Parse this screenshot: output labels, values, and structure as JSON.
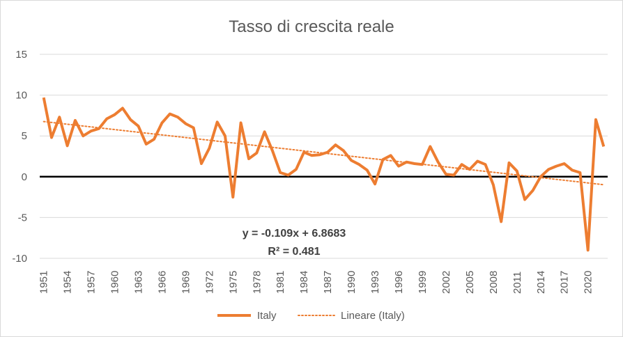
{
  "chart_data": {
    "type": "line",
    "title": "Tasso di crescita reale",
    "xlabel": "",
    "ylabel": "",
    "ylim": [
      -10,
      15
    ],
    "yticks": [
      -10,
      -5,
      0,
      5,
      10,
      15
    ],
    "xticks": [
      "1951",
      "1954",
      "1957",
      "1960",
      "1963",
      "1966",
      "1969",
      "1972",
      "1975",
      "1978",
      "1981",
      "1984",
      "1987",
      "1990",
      "1993",
      "1996",
      "1999",
      "2002",
      "2005",
      "2008",
      "2011",
      "2014",
      "2017",
      "2020"
    ],
    "x": [
      1951,
      1952,
      1953,
      1954,
      1955,
      1956,
      1957,
      1958,
      1959,
      1960,
      1961,
      1962,
      1963,
      1964,
      1965,
      1966,
      1967,
      1968,
      1969,
      1970,
      1971,
      1972,
      1973,
      1974,
      1975,
      1976,
      1977,
      1978,
      1979,
      1980,
      1981,
      1982,
      1983,
      1984,
      1985,
      1986,
      1987,
      1988,
      1989,
      1990,
      1991,
      1992,
      1993,
      1994,
      1995,
      1996,
      1997,
      1998,
      1999,
      2000,
      2001,
      2002,
      2003,
      2004,
      2005,
      2006,
      2007,
      2008,
      2009,
      2010,
      2011,
      2012,
      2013,
      2014,
      2015,
      2016,
      2017,
      2018,
      2019,
      2020,
      2021,
      2022
    ],
    "series": [
      {
        "name": "Italy",
        "color": "#ED7D31",
        "values": [
          9.7,
          4.8,
          7.3,
          3.8,
          6.9,
          5.0,
          5.6,
          5.9,
          7.1,
          7.6,
          8.4,
          7.0,
          6.2,
          4.0,
          4.6,
          6.6,
          7.7,
          7.3,
          6.5,
          6.0,
          1.6,
          3.5,
          6.7,
          5.0,
          -2.5,
          6.6,
          2.2,
          2.9,
          5.5,
          3.2,
          0.5,
          0.2,
          0.9,
          3.0,
          2.6,
          2.7,
          3.0,
          3.9,
          3.2,
          2.0,
          1.5,
          0.8,
          -0.9,
          2.1,
          2.6,
          1.3,
          1.8,
          1.6,
          1.5,
          3.7,
          1.8,
          0.3,
          0.2,
          1.5,
          0.9,
          1.9,
          1.5,
          -1.0,
          -5.5,
          1.7,
          0.7,
          -2.8,
          -1.7,
          0.0,
          0.9,
          1.3,
          1.6,
          0.8,
          0.5,
          -9.0,
          7.0,
          3.7
        ]
      }
    ],
    "trendline": {
      "name": "Lineare (Italy)",
      "color": "#ED7D31",
      "style": "dotted",
      "slope": -0.109,
      "intercept": 6.8683,
      "equation": "y = -0.109x + 6.8683",
      "r2": "R² = 0.481"
    },
    "grid": true,
    "legend": "bottom"
  }
}
